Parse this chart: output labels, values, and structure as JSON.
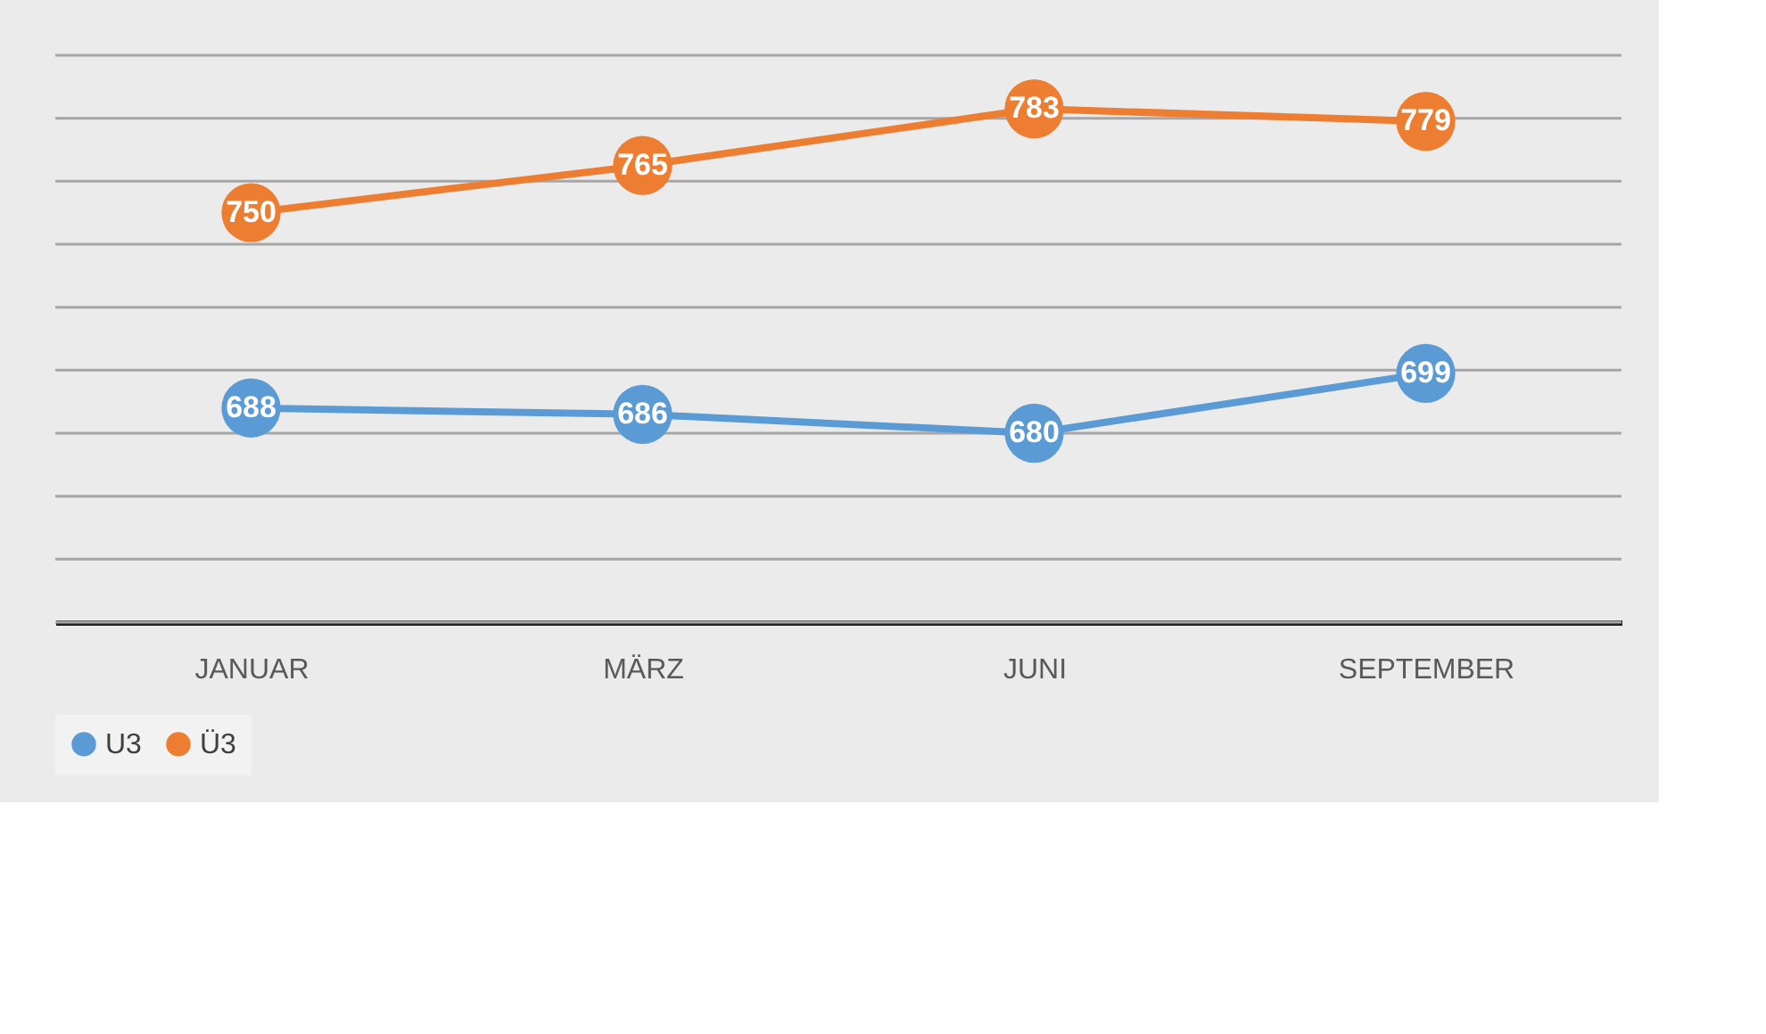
{
  "chart_data": {
    "type": "line",
    "categories": [
      "JANUAR",
      "MÄRZ",
      "JUNI",
      "SEPTEMBER"
    ],
    "series": [
      {
        "name": "U3",
        "color": "#5b9bd5",
        "values": [
          688,
          686,
          680,
          699
        ]
      },
      {
        "name": "Ü3",
        "color": "#ed7d31",
        "values": [
          750,
          765,
          783,
          779
        ]
      }
    ],
    "ylim": [
      620,
      800
    ],
    "yticks": [
      {
        "value": 620,
        "label": null
      },
      {
        "value": 640,
        "label": null
      },
      {
        "value": 660,
        "label": null
      },
      {
        "value": 680,
        "label": null
      },
      {
        "value": 700,
        "label": null
      },
      {
        "value": 720,
        "label": null
      },
      {
        "value": 740,
        "label": null
      },
      {
        "value": 760,
        "label": null
      },
      {
        "value": 780,
        "label": null
      },
      {
        "value": 800,
        "label": null
      }
    ],
    "tick_labels": "x",
    "grid": "y",
    "legend": "bottom",
    "marker": "circle",
    "line_style": "solid",
    "data_labels": true
  }
}
